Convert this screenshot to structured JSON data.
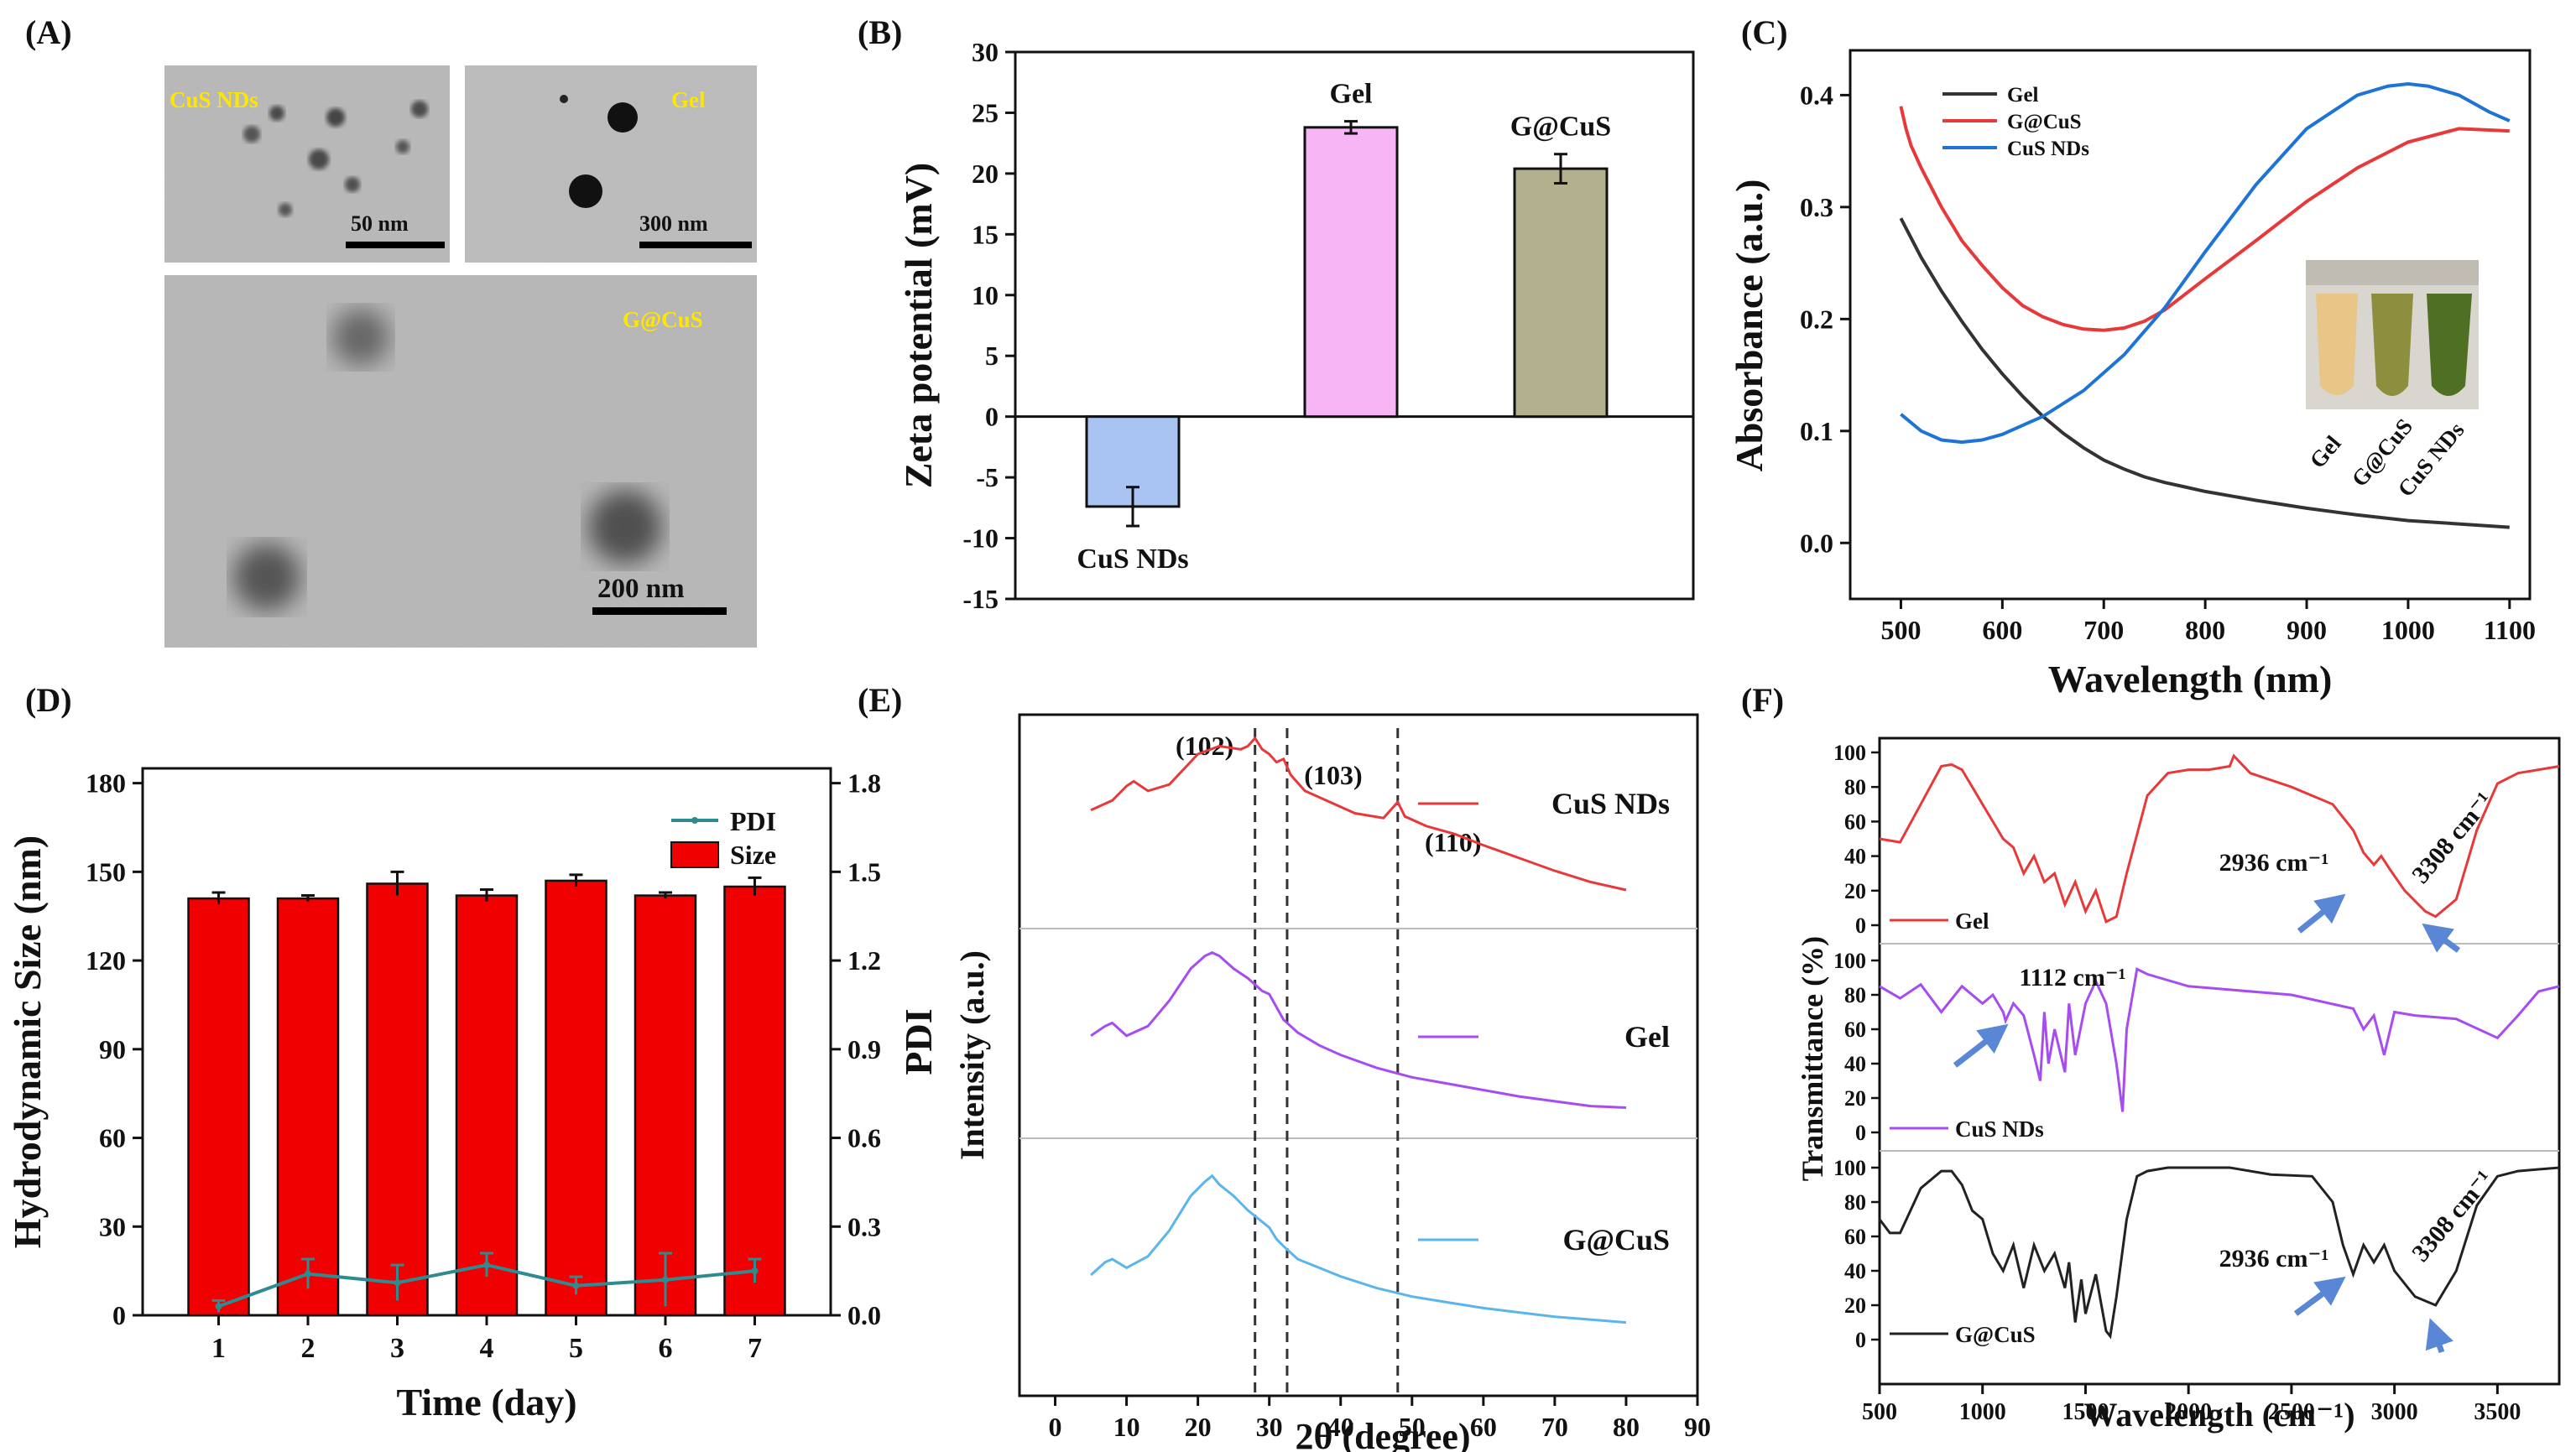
{
  "panels": {
    "A": {
      "label": "(A)",
      "labels": {
        "cus": "CuS NDs",
        "gel": "Gel",
        "gcus": "G@CuS"
      },
      "scalebars": {
        "cus": "50 nm",
        "gel": "300 nm",
        "gcus": "200 nm"
      }
    },
    "B": {
      "label": "(B)"
    },
    "C": {
      "label": "(C)",
      "inset_labels": [
        "Gel",
        "G@CuS",
        "CuS NDs"
      ]
    },
    "D": {
      "label": "(D)"
    },
    "E": {
      "label": "(E)"
    },
    "F": {
      "label": "(F)"
    }
  },
  "colors": {
    "red": "#e8393a",
    "blue": "#1e74d6",
    "black": "#333333",
    "purple": "#a64cf0",
    "lightblue": "#5ab5ea",
    "bar_red": "#f00000",
    "teal": "#2e8b8f"
  },
  "chart_data": [
    {
      "id": "B",
      "type": "bar",
      "categories": [
        "CuS NDs",
        "Gel",
        "G@CuS"
      ],
      "values": [
        -7.4,
        23.8,
        20.4
      ],
      "errors": [
        1.6,
        0.5,
        1.2
      ],
      "bar_colors": [
        "#a9c4f3",
        "#f7b5f5",
        "#b3b08d"
      ],
      "ylabel": "Zeta potential (mV)",
      "ylim": [
        -15,
        30
      ],
      "yticks": [
        "-15",
        "-10",
        "-5",
        "0",
        "5",
        "10",
        "15",
        "20",
        "25",
        "30"
      ]
    },
    {
      "id": "C",
      "type": "line",
      "xlabel": "Wavelength (nm)",
      "ylabel": "Absorbance (a.u.)",
      "xlim": [
        450,
        1120
      ],
      "ylim": [
        -0.05,
        0.44
      ],
      "xticks": [
        "500",
        "600",
        "700",
        "800",
        "900",
        "1000",
        "1100"
      ],
      "yticks": [
        "0.0",
        "0.1",
        "0.2",
        "0.3",
        "0.4"
      ],
      "series": [
        {
          "name": "Gel",
          "color": "#333333",
          "x": [
            500,
            520,
            540,
            560,
            580,
            600,
            620,
            640,
            660,
            680,
            700,
            720,
            740,
            760,
            780,
            800,
            850,
            900,
            950,
            1000,
            1050,
            1100
          ],
          "y": [
            0.29,
            0.255,
            0.225,
            0.198,
            0.173,
            0.151,
            0.131,
            0.113,
            0.098,
            0.085,
            0.074,
            0.066,
            0.059,
            0.054,
            0.05,
            0.046,
            0.038,
            0.031,
            0.025,
            0.02,
            0.017,
            0.014
          ]
        },
        {
          "name": "G@CuS",
          "color": "#e8393a",
          "x": [
            500,
            505,
            510,
            520,
            540,
            560,
            580,
            600,
            620,
            640,
            660,
            680,
            700,
            720,
            740,
            760,
            800,
            850,
            900,
            950,
            1000,
            1050,
            1100
          ],
          "y": [
            0.39,
            0.37,
            0.355,
            0.335,
            0.3,
            0.27,
            0.248,
            0.228,
            0.212,
            0.202,
            0.195,
            0.191,
            0.19,
            0.192,
            0.198,
            0.208,
            0.236,
            0.27,
            0.305,
            0.335,
            0.358,
            0.37,
            0.368
          ]
        },
        {
          "name": "CuS NDs",
          "color": "#1e74d6",
          "x": [
            500,
            520,
            540,
            560,
            580,
            600,
            640,
            680,
            720,
            760,
            800,
            850,
            900,
            950,
            980,
            1000,
            1020,
            1050,
            1080,
            1100
          ],
          "y": [
            0.115,
            0.1,
            0.092,
            0.09,
            0.092,
            0.097,
            0.113,
            0.136,
            0.168,
            0.21,
            0.26,
            0.32,
            0.37,
            0.4,
            0.408,
            0.41,
            0.408,
            0.4,
            0.385,
            0.377
          ]
        }
      ]
    },
    {
      "id": "D",
      "type": "bar",
      "categories": [
        "1",
        "2",
        "3",
        "4",
        "5",
        "6",
        "7"
      ],
      "xlabel": "Time (day)",
      "ylabel": "Hydrodynamic Size (nm)",
      "y2label": "PDI",
      "ylim": [
        0,
        185
      ],
      "y2lim": [
        0,
        1.85
      ],
      "yticks": [
        "0",
        "30",
        "60",
        "90",
        "120",
        "150",
        "180"
      ],
      "y2ticks": [
        "0.0",
        "0.3",
        "0.6",
        "0.9",
        "1.2",
        "1.5",
        "1.8"
      ],
      "series": [
        {
          "name": "Size",
          "values": [
            141,
            141,
            146,
            142,
            147,
            142,
            145
          ],
          "errors": [
            2,
            1,
            4,
            2,
            2,
            1,
            3
          ]
        },
        {
          "name": "PDI",
          "values": [
            0.03,
            0.14,
            0.11,
            0.17,
            0.1,
            0.12,
            0.15
          ],
          "errors": [
            0.02,
            0.05,
            0.06,
            0.04,
            0.03,
            0.09,
            0.04
          ]
        }
      ]
    },
    {
      "id": "E",
      "type": "line",
      "xlabel": "2θ (degree)",
      "ylabel": "Intensity (a.u.)",
      "xlim": [
        -5,
        90
      ],
      "xticks": [
        "0",
        "10",
        "20",
        "30",
        "40",
        "50",
        "60",
        "70",
        "80",
        "90"
      ],
      "peaks": [
        {
          "label": "(102)",
          "x": 28
        },
        {
          "label": "(103)",
          "x": 32.5
        },
        {
          "label": "(110)",
          "x": 48
        }
      ],
      "series": [
        {
          "name": "CuS NDs",
          "color": "#e8393a",
          "x": [
            5,
            8,
            10,
            11,
            13,
            16,
            20,
            23,
            26,
            27,
            28,
            29,
            30,
            31,
            32,
            33,
            35,
            38,
            42,
            46,
            47,
            48,
            49,
            52,
            56,
            60,
            65,
            70,
            75,
            80
          ],
          "y": [
            0.6,
            0.66,
            0.75,
            0.78,
            0.72,
            0.76,
            0.95,
            1.0,
            0.98,
            1.0,
            1.05,
            0.98,
            0.95,
            0.9,
            0.92,
            0.82,
            0.72,
            0.66,
            0.58,
            0.55,
            0.6,
            0.65,
            0.56,
            0.5,
            0.45,
            0.38,
            0.3,
            0.22,
            0.15,
            0.1
          ]
        },
        {
          "name": "Gel",
          "color": "#a64cf0",
          "x": [
            5,
            7,
            8,
            10,
            13,
            16,
            19,
            21,
            22,
            23,
            25,
            27,
            29,
            30,
            31,
            32,
            34,
            37,
            40,
            45,
            50,
            55,
            60,
            65,
            70,
            75,
            80
          ],
          "y": [
            0.5,
            0.56,
            0.58,
            0.5,
            0.56,
            0.72,
            0.92,
            1.0,
            1.02,
            1.0,
            0.92,
            0.86,
            0.78,
            0.76,
            0.68,
            0.6,
            0.52,
            0.44,
            0.38,
            0.3,
            0.24,
            0.2,
            0.16,
            0.12,
            0.09,
            0.06,
            0.05
          ]
        },
        {
          "name": "G@CuS",
          "color": "#5ab5ea",
          "x": [
            5,
            7,
            8,
            10,
            13,
            16,
            19,
            21,
            22,
            23,
            25,
            27,
            29,
            30,
            31,
            32,
            34,
            37,
            40,
            45,
            50,
            55,
            60,
            65,
            70,
            75,
            80
          ],
          "y": [
            0.35,
            0.44,
            0.46,
            0.4,
            0.48,
            0.66,
            0.9,
            1.0,
            1.04,
            0.98,
            0.9,
            0.8,
            0.72,
            0.68,
            0.6,
            0.55,
            0.46,
            0.4,
            0.34,
            0.26,
            0.2,
            0.16,
            0.12,
            0.09,
            0.06,
            0.04,
            0.02
          ]
        }
      ]
    },
    {
      "id": "F",
      "type": "line",
      "xlabel": "Wavelength (cm⁻¹)",
      "ylabel": "Transmittance  (%)",
      "xlim": [
        500,
        3800
      ],
      "xticks": [
        "500",
        "1000",
        "1500",
        "2000",
        "2500",
        "3000",
        "3500"
      ],
      "yticks": [
        "0",
        "20",
        "40",
        "60",
        "80",
        "100"
      ],
      "annotations": [
        {
          "series": "Gel",
          "text": "2936 cm⁻¹"
        },
        {
          "series": "Gel",
          "text": "3308 cm⁻¹"
        },
        {
          "series": "CuS NDs",
          "text": "1112 cm⁻¹"
        },
        {
          "series": "G@CuS",
          "text": "2936 cm⁻¹"
        },
        {
          "series": "G@CuS",
          "text": "3308 cm⁻¹"
        }
      ],
      "series": [
        {
          "name": "Gel",
          "color": "#e8393a",
          "x": [
            500,
            600,
            700,
            800,
            850,
            900,
            950,
            1000,
            1050,
            1100,
            1150,
            1200,
            1250,
            1300,
            1350,
            1400,
            1450,
            1500,
            1550,
            1600,
            1650,
            1700,
            1800,
            1900,
            2000,
            2100,
            2200,
            2220,
            2300,
            2500,
            2700,
            2800,
            2850,
            2900,
            2936,
            2980,
            3050,
            3150,
            3200,
            3300,
            3400,
            3500,
            3600,
            3700,
            3800
          ],
          "y": [
            50,
            48,
            70,
            92,
            93,
            90,
            80,
            70,
            60,
            50,
            45,
            30,
            40,
            25,
            30,
            12,
            25,
            8,
            20,
            2,
            5,
            30,
            75,
            88,
            90,
            90,
            92,
            98,
            88,
            80,
            70,
            55,
            42,
            35,
            40,
            32,
            20,
            8,
            5,
            15,
            55,
            82,
            88,
            90,
            92
          ]
        },
        {
          "name": "CuS NDs",
          "color": "#a64cf0",
          "x": [
            500,
            600,
            700,
            800,
            900,
            1000,
            1050,
            1100,
            1112,
            1150,
            1200,
            1250,
            1280,
            1300,
            1320,
            1350,
            1400,
            1420,
            1450,
            1500,
            1550,
            1600,
            1650,
            1680,
            1700,
            1750,
            1800,
            2000,
            2500,
            2800,
            2850,
            2900,
            2950,
            3000,
            3100,
            3300,
            3500,
            3600,
            3700,
            3800
          ],
          "y": [
            85,
            78,
            86,
            70,
            85,
            75,
            80,
            70,
            65,
            75,
            68,
            45,
            30,
            70,
            40,
            60,
            35,
            75,
            45,
            75,
            88,
            75,
            40,
            12,
            60,
            95,
            92,
            85,
            80,
            72,
            60,
            68,
            45,
            70,
            68,
            66,
            55,
            68,
            82,
            85
          ]
        },
        {
          "name": "G@CuS",
          "color": "#222222",
          "x": [
            500,
            550,
            600,
            700,
            800,
            850,
            900,
            950,
            1000,
            1050,
            1100,
            1150,
            1200,
            1250,
            1300,
            1350,
            1400,
            1420,
            1450,
            1480,
            1500,
            1550,
            1600,
            1620,
            1650,
            1700,
            1750,
            1800,
            1900,
            2000,
            2200,
            2400,
            2600,
            2700,
            2750,
            2800,
            2850,
            2900,
            2950,
            3000,
            3100,
            3200,
            3300,
            3400,
            3500,
            3600,
            3700,
            3800
          ],
          "y": [
            70,
            62,
            62,
            88,
            98,
            98,
            90,
            75,
            70,
            50,
            40,
            55,
            30,
            55,
            40,
            50,
            30,
            45,
            10,
            35,
            15,
            38,
            5,
            2,
            25,
            70,
            95,
            98,
            100,
            100,
            100,
            96,
            95,
            80,
            55,
            38,
            55,
            45,
            55,
            40,
            25,
            20,
            40,
            78,
            95,
            98,
            99,
            100
          ]
        }
      ]
    }
  ]
}
